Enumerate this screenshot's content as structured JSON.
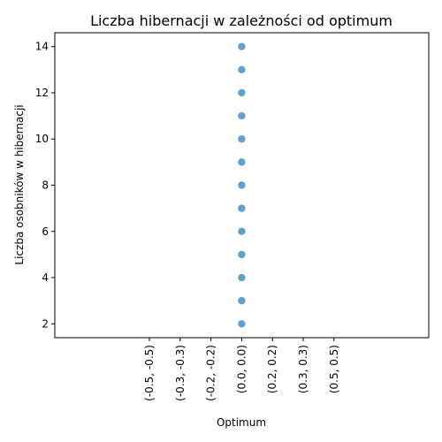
{
  "chart_data": {
    "type": "scatter",
    "title": "Liczba hibernacji w zależności od optimum",
    "xlabel": "Optimum",
    "ylabel": "Liczba osobników w hibernacji",
    "categories": [
      "(-0.5, -0.5)",
      "(-0.3, -0.3)",
      "(-0.2, -0.2)",
      "(0.0, 0.0)",
      "(0.2, 0.2)",
      "(0.3, 0.3)",
      "(0.5, 0.5)"
    ],
    "yticks": [
      2,
      4,
      6,
      8,
      10,
      12,
      14
    ],
    "ylim": [
      1.4,
      14.6
    ],
    "grid": false,
    "marker_color": "#1f77b4",
    "marker_alpha": 0.7,
    "points": [
      {
        "x": "(0.0, 0.0)",
        "y": 2
      },
      {
        "x": "(0.0, 0.0)",
        "y": 3
      },
      {
        "x": "(0.0, 0.0)",
        "y": 4
      },
      {
        "x": "(0.0, 0.0)",
        "y": 5
      },
      {
        "x": "(0.0, 0.0)",
        "y": 6
      },
      {
        "x": "(0.0, 0.0)",
        "y": 7
      },
      {
        "x": "(0.0, 0.0)",
        "y": 8
      },
      {
        "x": "(0.0, 0.0)",
        "y": 9
      },
      {
        "x": "(0.0, 0.0)",
        "y": 10
      },
      {
        "x": "(0.0, 0.0)",
        "y": 11
      },
      {
        "x": "(0.0, 0.0)",
        "y": 12
      },
      {
        "x": "(0.0, 0.0)",
        "y": 13
      },
      {
        "x": "(0.0, 0.0)",
        "y": 14
      }
    ]
  }
}
